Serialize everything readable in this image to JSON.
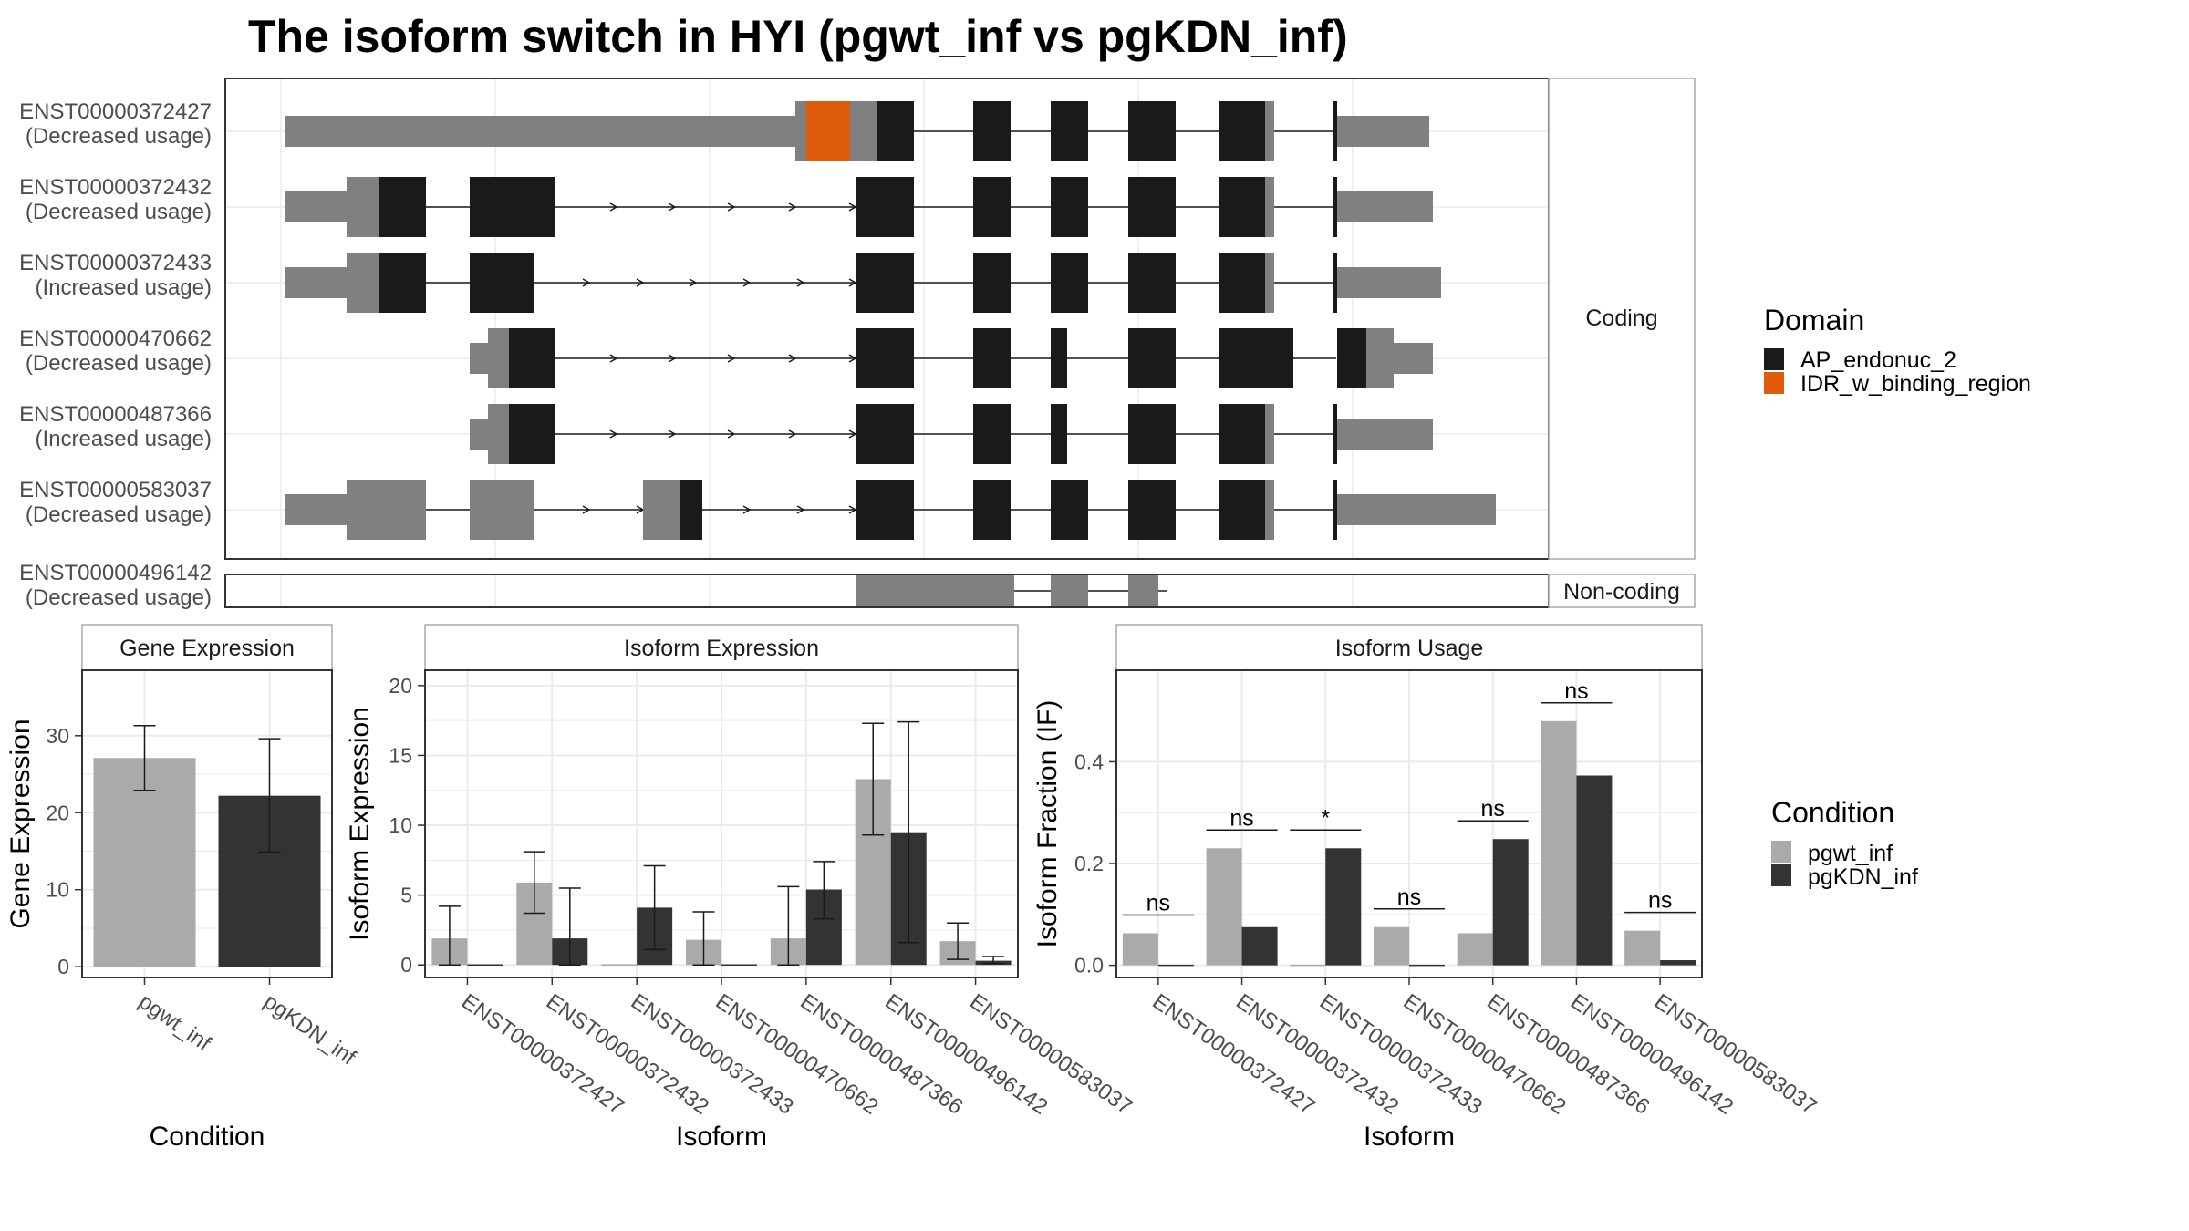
{
  "title": "The isoform switch in HYI (pgwt_inf vs pgKDN_inf)",
  "colors": {
    "domain_ap": "#1a1a1a",
    "domain_idr": "#e05c0d",
    "utr": "#808080",
    "pgwt_inf": "#aaaaaa",
    "pgKDN_inf": "#333333",
    "strip": "#ffffff",
    "border": "#333333",
    "grid": "#ebebeb"
  },
  "chart_data": [
    {
      "type": "gene_structure",
      "facets": [
        {
          "label": "Coding",
          "transcripts": [
            {
              "id": "ENST00000372427",
              "usage": "(Decreased usage)"
            },
            {
              "id": "ENST00000372432",
              "usage": "(Decreased usage)"
            },
            {
              "id": "ENST00000372433",
              "usage": "(Increased usage)"
            },
            {
              "id": "ENST00000470662",
              "usage": "(Decreased usage)"
            },
            {
              "id": "ENST00000487366",
              "usage": "(Increased usage)"
            },
            {
              "id": "ENST00000583037",
              "usage": "(Decreased usage)"
            }
          ]
        },
        {
          "label": "Non-coding",
          "transcripts": [
            {
              "id": "ENST00000496142",
              "usage": "(Decreased usage)"
            }
          ]
        }
      ],
      "legend": {
        "title": "Domain",
        "entries": [
          "AP_endonuc_2",
          "IDR_w_binding_region"
        ]
      }
    },
    {
      "type": "bar",
      "title": "Gene Expression",
      "xlabel": "Condition",
      "ylabel": "Gene Expression",
      "categories": [
        "pgwt_inf",
        "pgKDN_inf"
      ],
      "values": [
        27.1,
        22.2
      ],
      "error_low": [
        22.9,
        14.9
      ],
      "error_high": [
        31.3,
        29.6
      ],
      "ylim": [
        -1.4,
        38.5
      ],
      "yticks": [
        0,
        10,
        20,
        30
      ]
    },
    {
      "type": "bar",
      "title": "Isoform Expression",
      "xlabel": "Isoform",
      "ylabel": "Isoform Expression",
      "categories": [
        "ENST00000372427",
        "ENST00000372432",
        "ENST00000372433",
        "ENST00000470662",
        "ENST00000487366",
        "ENST00000496142",
        "ENST00000583037"
      ],
      "series": [
        {
          "name": "pgwt_inf",
          "values": [
            1.9,
            5.9,
            0.0,
            1.8,
            1.9,
            13.3,
            1.7
          ],
          "error_low": [
            0.0,
            3.7,
            0.0,
            0.0,
            0.0,
            9.3,
            0.4
          ],
          "error_high": [
            4.2,
            8.1,
            0.0,
            3.8,
            5.6,
            17.3,
            3.0
          ]
        },
        {
          "name": "pgKDN_inf",
          "values": [
            0.0,
            1.9,
            4.1,
            0.0,
            5.4,
            9.5,
            0.3
          ],
          "error_low": [
            0.0,
            0.0,
            1.1,
            0.0,
            3.3,
            1.6,
            0.1
          ],
          "error_high": [
            0.0,
            5.5,
            7.1,
            0.0,
            7.4,
            17.4,
            0.6
          ]
        }
      ],
      "ylim": [
        -0.9,
        21.1
      ],
      "yticks": [
        0,
        5,
        10,
        15,
        20
      ]
    },
    {
      "type": "bar",
      "title": "Isoform Usage",
      "xlabel": "Isoform",
      "ylabel": "Isoform Fraction (IF)",
      "categories": [
        "ENST00000372427",
        "ENST00000372432",
        "ENST00000372433",
        "ENST00000470662",
        "ENST00000487366",
        "ENST00000496142",
        "ENST00000583037"
      ],
      "series": [
        {
          "name": "pgwt_inf",
          "values": [
            0.063,
            0.23,
            0.0,
            0.075,
            0.063,
            0.48,
            0.068
          ]
        },
        {
          "name": "pgKDN_inf",
          "values": [
            0.0,
            0.075,
            0.23,
            0.0,
            0.248,
            0.373,
            0.01
          ]
        }
      ],
      "significance": [
        "ns",
        "ns",
        "*",
        "ns",
        "ns",
        "ns",
        "ns"
      ],
      "ylim": [
        -0.024,
        0.58
      ],
      "yticks": [
        0.0,
        0.2,
        0.4
      ],
      "ytick_labels": [
        "0.0",
        "0.2",
        "0.4"
      ]
    }
  ],
  "condition_legend": {
    "title": "Condition",
    "entries": [
      "pgwt_inf",
      "pgKDN_inf"
    ]
  }
}
